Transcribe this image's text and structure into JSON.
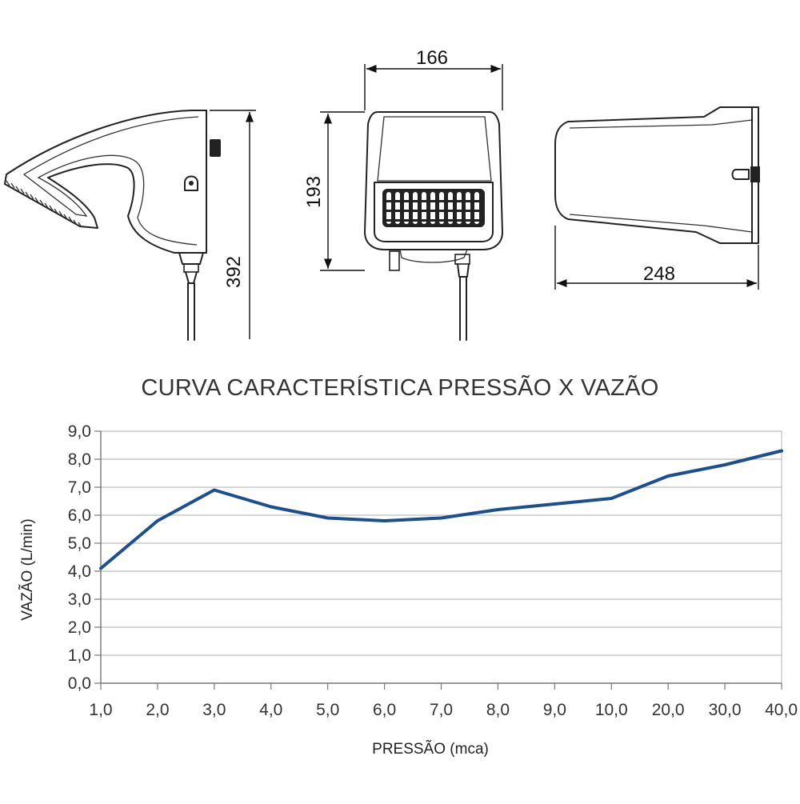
{
  "dimensions": {
    "width_top": "166",
    "height_front": "193",
    "height_side": "392",
    "length_bottom": "248"
  },
  "colors": {
    "line": "#1c4f8f",
    "grid": "#bdbdbd",
    "axis": "#777777"
  },
  "chart_data": {
    "type": "line",
    "title": "CURVA CARACTERÍSTICA PRESSÃO X VAZÃO",
    "xlabel": "PRESSÃO (mca)",
    "ylabel": "VAZÃO (L/min)",
    "categories": [
      "1,0",
      "2,0",
      "3,0",
      "4,0",
      "5,0",
      "6,0",
      "7,0",
      "8,0",
      "9,0",
      "10,0",
      "20,0",
      "30,0",
      "40,0"
    ],
    "series": [
      {
        "values": [
          4.1,
          5.8,
          6.9,
          6.3,
          5.9,
          5.8,
          5.9,
          6.2,
          6.4,
          6.6,
          7.4,
          7.8,
          8.3
        ]
      }
    ],
    "yticks": [
      "0,0",
      "1,0",
      "2,0",
      "3,0",
      "4,0",
      "5,0",
      "6,0",
      "7,0",
      "8,0",
      "9,0"
    ],
    "ylim": [
      0,
      9
    ],
    "grid": true,
    "legend": "none"
  }
}
